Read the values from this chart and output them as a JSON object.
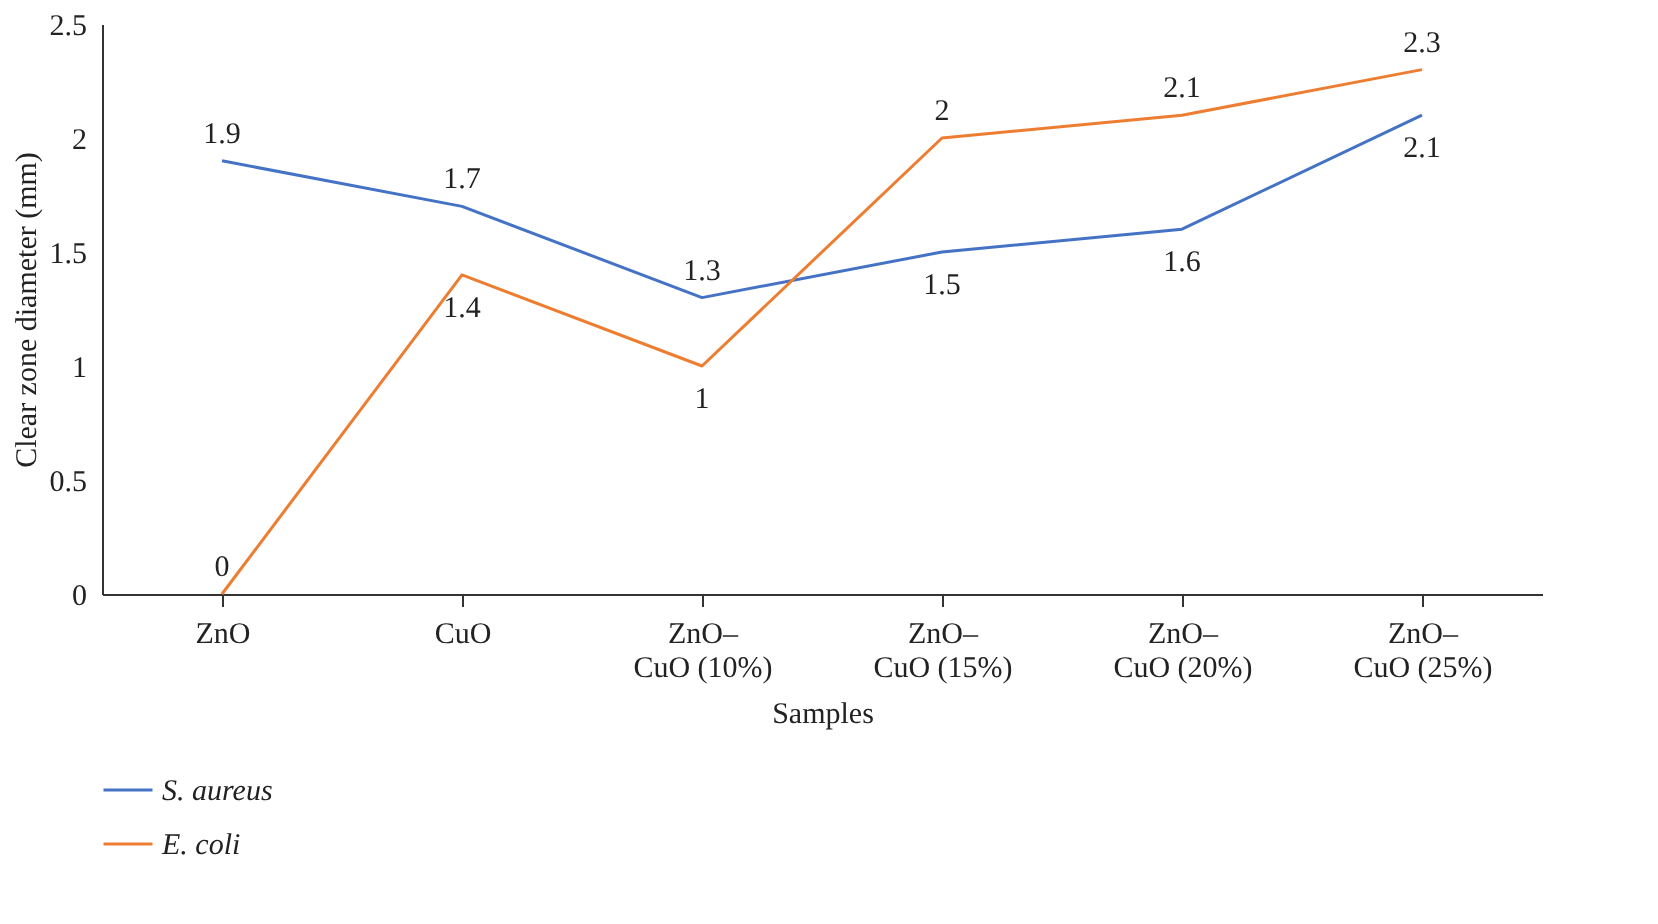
{
  "chart_data": {
    "type": "line",
    "xlabel": "Samples",
    "ylabel": "Clear zone diameter (mm)",
    "categories": [
      "ZnO",
      "CuO",
      "ZnO–CuO (10%)",
      "ZnO–CuO (15%)",
      "ZnO–CuO (20%)",
      "ZnO–CuO (25%)"
    ],
    "series": [
      {
        "name": "S. aureus",
        "color": "#4472c4",
        "values": [
          1.9,
          1.7,
          1.3,
          1.5,
          1.6,
          2.1
        ]
      },
      {
        "name": "E. coli",
        "color": "#ed7d31",
        "values": [
          0,
          1.4,
          1,
          2,
          2.1,
          2.3
        ]
      }
    ],
    "ylim": [
      0,
      2.5
    ],
    "yticks": [
      0,
      0.5,
      1,
      1.5,
      2,
      2.5
    ],
    "grid": false,
    "legend": "bottom",
    "data_labels": true,
    "marker": "none",
    "line_style": "solid"
  }
}
